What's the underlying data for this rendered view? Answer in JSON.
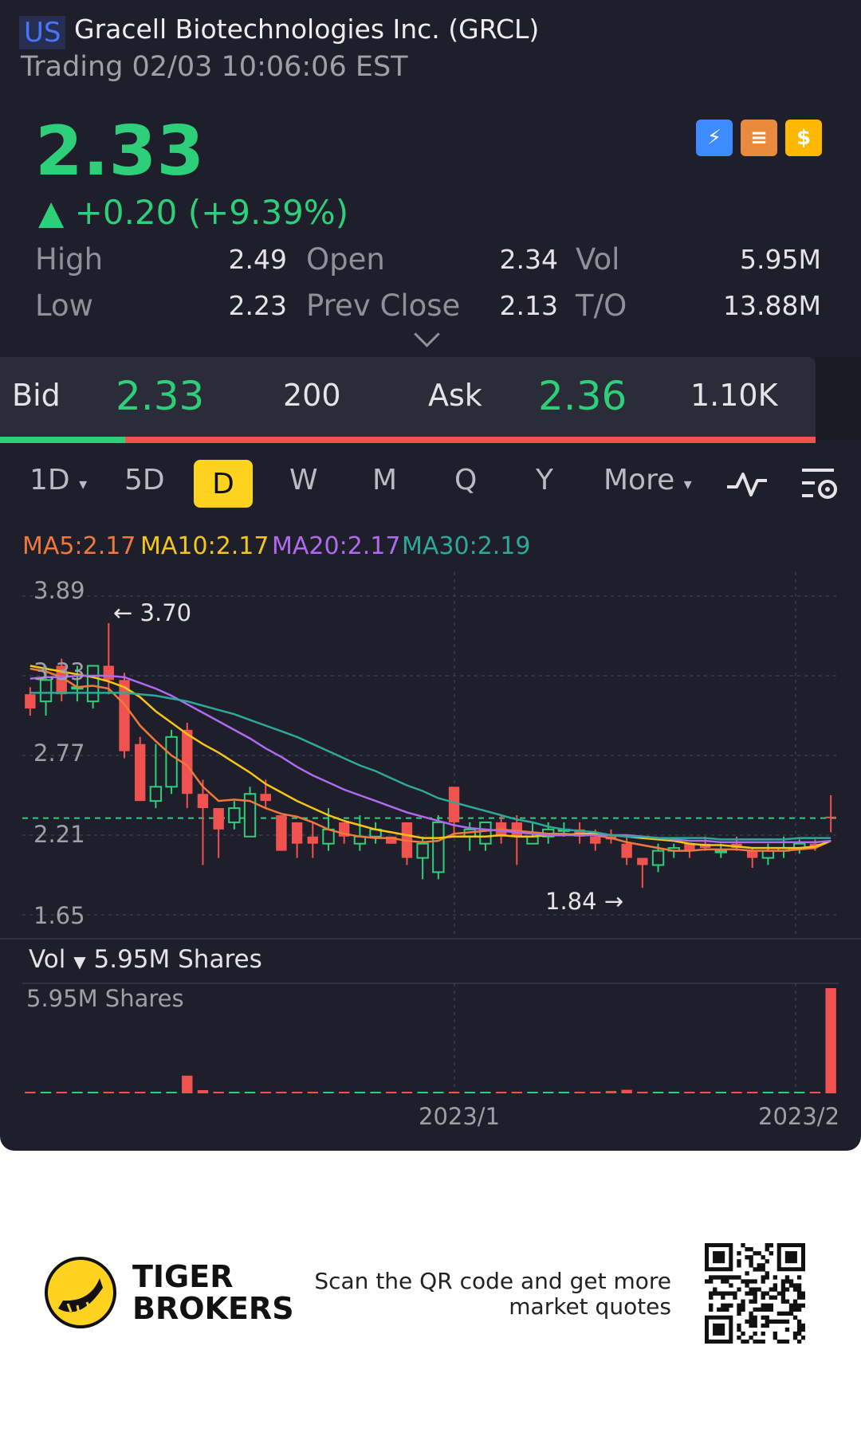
{
  "header": {
    "market": "US",
    "name": "Gracell Biotechnologies Inc. (GRCL)",
    "status": "Trading 02/03 10:06:06 EST",
    "price": "2.33",
    "change": "▲ +0.20 (+9.39%)"
  },
  "colors": {
    "up": "#2ecf7a",
    "down": "#f0534f",
    "accent": "#ffd21f",
    "background": "#1e1f2a"
  },
  "stats": {
    "high_label": "High",
    "high": "2.49",
    "low_label": "Low",
    "low": "2.23",
    "open_label": "Open",
    "open": "2.34",
    "prev_close_label": "Prev Close",
    "prev_close": "2.13",
    "vol_label": "Vol",
    "vol": "5.95M",
    "to_label": "T/O",
    "to": "13.88M"
  },
  "quote": {
    "bid_label": "Bid",
    "bid_price": "2.33",
    "bid_size": "200",
    "ask_label": "Ask",
    "ask_price": "2.36",
    "ask_size": "1.10K"
  },
  "periods": [
    "1D",
    "5D",
    "D",
    "W",
    "M",
    "Q",
    "Y",
    "More"
  ],
  "selected_period": "D",
  "ma_labels": {
    "ma5": "MA5:2.17",
    "ma10": "MA10:2.17",
    "ma20": "MA20:2.17",
    "ma30": "MA30:2.19"
  },
  "chart": {
    "y_ticks": [
      "3.89",
      "3.33",
      "2.77",
      "2.21",
      "1.65"
    ],
    "high_note": "3.70",
    "low_note": "1.84",
    "vol_title": "Vol",
    "vol_value": "5.95M Shares",
    "vol_axis": "5.95M Shares",
    "x_labels": [
      "2023/1",
      "2023/2"
    ]
  },
  "chart_data": {
    "type": "candlestick",
    "ylim": [
      1.65,
      3.89
    ],
    "ohlc": [
      [
        3.2,
        3.25,
        3.05,
        3.1
      ],
      [
        3.15,
        3.4,
        3.05,
        3.3
      ],
      [
        3.4,
        3.45,
        3.15,
        3.2
      ],
      [
        3.25,
        3.4,
        3.15,
        3.25
      ],
      [
        3.15,
        3.4,
        3.1,
        3.4
      ],
      [
        3.4,
        3.7,
        3.2,
        3.3
      ],
      [
        3.3,
        3.35,
        2.75,
        2.8
      ],
      [
        2.85,
        2.9,
        2.45,
        2.45
      ],
      [
        2.45,
        2.85,
        2.4,
        2.55
      ],
      [
        2.55,
        2.95,
        2.5,
        2.9
      ],
      [
        2.95,
        3.0,
        2.4,
        2.5
      ],
      [
        2.5,
        2.6,
        2.0,
        2.4
      ],
      [
        2.4,
        2.4,
        2.05,
        2.25
      ],
      [
        2.3,
        2.45,
        2.25,
        2.4
      ],
      [
        2.2,
        2.55,
        2.2,
        2.5
      ],
      [
        2.5,
        2.6,
        2.4,
        2.45
      ],
      [
        2.35,
        2.35,
        2.1,
        2.1
      ],
      [
        2.3,
        2.3,
        2.05,
        2.15
      ],
      [
        2.2,
        2.3,
        2.05,
        2.15
      ],
      [
        2.15,
        2.4,
        2.1,
        2.25
      ],
      [
        2.3,
        2.3,
        2.15,
        2.2
      ],
      [
        2.15,
        2.35,
        2.1,
        2.2
      ],
      [
        2.2,
        2.3,
        2.15,
        2.25
      ],
      [
        2.2,
        2.2,
        2.15,
        2.15
      ],
      [
        2.3,
        2.3,
        2.0,
        2.05
      ],
      [
        2.05,
        2.2,
        1.9,
        2.15
      ],
      [
        1.95,
        2.35,
        1.9,
        2.3
      ],
      [
        2.55,
        2.55,
        2.2,
        2.3
      ],
      [
        2.2,
        2.3,
        2.1,
        2.25
      ],
      [
        2.15,
        2.3,
        2.1,
        2.3
      ],
      [
        2.3,
        2.35,
        2.15,
        2.2
      ],
      [
        2.3,
        2.35,
        2.0,
        2.2
      ],
      [
        2.15,
        2.3,
        2.15,
        2.2
      ],
      [
        2.2,
        2.3,
        2.15,
        2.25
      ],
      [
        2.25,
        2.3,
        2.2,
        2.25
      ],
      [
        2.25,
        2.3,
        2.15,
        2.2
      ],
      [
        2.2,
        2.25,
        2.1,
        2.15
      ],
      [
        2.2,
        2.25,
        2.15,
        2.18
      ],
      [
        2.15,
        2.2,
        2.0,
        2.05
      ],
      [
        2.05,
        2.05,
        1.84,
        2.0
      ],
      [
        2.0,
        2.15,
        1.95,
        2.1
      ],
      [
        2.1,
        2.15,
        2.05,
        2.12
      ],
      [
        2.15,
        2.15,
        2.05,
        2.1
      ],
      [
        2.15,
        2.2,
        2.1,
        2.12
      ],
      [
        2.1,
        2.15,
        2.05,
        2.1
      ],
      [
        2.15,
        2.2,
        2.1,
        2.12
      ],
      [
        2.1,
        2.12,
        1.98,
        2.05
      ],
      [
        2.05,
        2.15,
        2.0,
        2.1
      ],
      [
        2.1,
        2.2,
        2.05,
        2.12
      ],
      [
        2.12,
        2.18,
        2.08,
        2.15
      ],
      [
        2.15,
        2.18,
        2.1,
        2.13
      ],
      [
        2.34,
        2.49,
        2.23,
        2.33
      ]
    ],
    "series": [
      {
        "name": "MA5",
        "color": "#f0783c",
        "values": [
          3.38,
          3.36,
          3.32,
          3.25,
          3.26,
          3.24,
          3.13,
          2.98,
          2.87,
          2.77,
          2.7,
          2.55,
          2.45,
          2.46,
          2.45,
          2.4,
          2.36,
          2.34,
          2.3,
          2.25,
          2.22,
          2.2,
          2.19,
          2.19,
          2.17,
          2.16,
          2.17,
          2.22,
          2.23,
          2.24,
          2.25,
          2.24,
          2.23,
          2.22,
          2.22,
          2.21,
          2.21,
          2.19,
          2.16,
          2.14,
          2.12,
          2.1,
          2.1,
          2.11,
          2.11,
          2.11,
          2.1,
          2.1,
          2.1,
          2.11,
          2.12,
          2.17
        ]
      },
      {
        "name": "MA10",
        "color": "#f5c518",
        "values": [
          3.4,
          3.38,
          3.36,
          3.34,
          3.32,
          3.29,
          3.25,
          3.18,
          3.08,
          3.0,
          2.92,
          2.85,
          2.79,
          2.72,
          2.65,
          2.57,
          2.51,
          2.45,
          2.4,
          2.35,
          2.31,
          2.28,
          2.25,
          2.23,
          2.21,
          2.19,
          2.19,
          2.2,
          2.2,
          2.2,
          2.21,
          2.2,
          2.2,
          2.21,
          2.21,
          2.22,
          2.22,
          2.21,
          2.2,
          2.19,
          2.18,
          2.17,
          2.15,
          2.14,
          2.14,
          2.13,
          2.12,
          2.12,
          2.12,
          2.12,
          2.13,
          2.17
        ]
      },
      {
        "name": "MA20",
        "color": "#b06af0",
        "values": [
          3.31,
          3.32,
          3.32,
          3.33,
          3.33,
          3.33,
          3.32,
          3.28,
          3.24,
          3.19,
          3.13,
          3.07,
          3.01,
          2.95,
          2.89,
          2.82,
          2.76,
          2.69,
          2.63,
          2.58,
          2.53,
          2.49,
          2.45,
          2.41,
          2.37,
          2.34,
          2.31,
          2.28,
          2.26,
          2.25,
          2.24,
          2.23,
          2.22,
          2.21,
          2.21,
          2.21,
          2.21,
          2.21,
          2.21,
          2.2,
          2.19,
          2.18,
          2.17,
          2.17,
          2.16,
          2.16,
          2.16,
          2.16,
          2.16,
          2.16,
          2.16,
          2.17
        ]
      },
      {
        "name": "MA30",
        "color": "#2fa89a",
        "values": [
          3.21,
          3.21,
          3.21,
          3.21,
          3.21,
          3.21,
          3.21,
          3.2,
          3.19,
          3.17,
          3.15,
          3.12,
          3.09,
          3.06,
          3.02,
          2.98,
          2.94,
          2.9,
          2.85,
          2.8,
          2.75,
          2.7,
          2.66,
          2.61,
          2.56,
          2.52,
          2.47,
          2.44,
          2.41,
          2.38,
          2.35,
          2.32,
          2.3,
          2.27,
          2.25,
          2.24,
          2.23,
          2.21,
          2.2,
          2.2,
          2.19,
          2.19,
          2.19,
          2.19,
          2.18,
          2.18,
          2.18,
          2.18,
          2.18,
          2.19,
          2.19,
          2.19
        ]
      }
    ],
    "volume": [
      0.02,
      0.02,
      0.03,
      0.02,
      0.01,
      0.03,
      0.05,
      0.03,
      0.02,
      0.01,
      1.0,
      0.18,
      0.04,
      0.03,
      0.02,
      0.03,
      0.02,
      0.01,
      0.02,
      0.01,
      0.02,
      0.01,
      0.02,
      0.02,
      0.03,
      0.02,
      0.02,
      0.04,
      0.02,
      0.03,
      0.02,
      0.02,
      0.03,
      0.04,
      0.03,
      0.02,
      0.03,
      0.13,
      0.2,
      0.06,
      0.05,
      0.03,
      0.02,
      0.03,
      0.04,
      0.02,
      0.03,
      0.02,
      0.03,
      0.02,
      0.03,
      5.95
    ],
    "volume_unit": "M Shares",
    "x_labels": [
      "2023/1",
      "2023/2"
    ]
  },
  "footer": {
    "brand_line1": "TIGER",
    "brand_line2": "BROKERS",
    "message_line1": "Scan the QR code and get more",
    "message_line2": "market quotes"
  }
}
